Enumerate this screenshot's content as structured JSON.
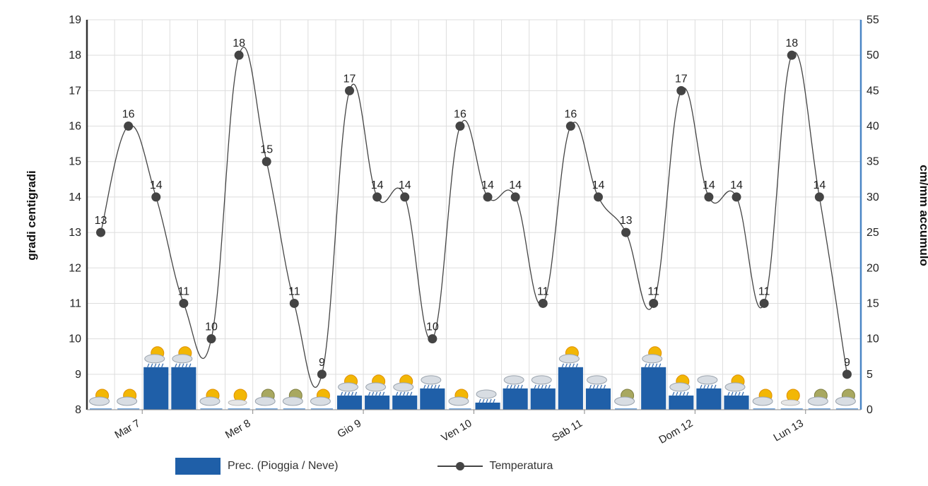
{
  "chart_data": {
    "type": "line",
    "title": "",
    "y_left_label": "gradi centigradi",
    "y_right_label": "cm/mm accumulo",
    "y_left_ticks": [
      "8",
      "9",
      "10",
      "11",
      "12",
      "13",
      "14",
      "15",
      "16",
      "17",
      "18",
      "19"
    ],
    "y_right_ticks": [
      "0",
      "5",
      "10",
      "15",
      "20",
      "25",
      "30",
      "35",
      "40",
      "45",
      "50",
      "55"
    ],
    "y_left_range": [
      8,
      19
    ],
    "y_right_range": [
      0,
      55
    ],
    "x_labels": [
      "Mar 7",
      "Mer 8",
      "Gio 9",
      "Ven 10",
      "Sab 11",
      "Dom 12",
      "Lun 13"
    ],
    "temperature_labels": [
      "13",
      "16",
      "14",
      "11",
      "10",
      "18",
      "15",
      "11",
      "9",
      "17",
      "14",
      "14",
      "10",
      "16",
      "14",
      "14",
      "11",
      "16",
      "14",
      "13",
      "11",
      "17",
      "14",
      "14",
      "11",
      "18",
      "14",
      "9"
    ],
    "series": [
      {
        "name": "Temperatura",
        "type": "line",
        "axis": "left",
        "color": "#444444",
        "values": [
          13,
          16,
          14,
          11,
          10,
          18,
          15,
          11,
          9,
          17,
          14,
          14,
          10,
          16,
          14,
          14,
          11,
          16,
          14,
          13,
          11,
          17,
          14,
          14,
          11,
          18,
          14,
          9
        ]
      },
      {
        "name": "Prec. (Pioggia / Neve)",
        "type": "bar",
        "axis": "right",
        "color": "#1f5fa8",
        "values": [
          0,
          0,
          6,
          6,
          0,
          0,
          0,
          0,
          0,
          2,
          2,
          2,
          3,
          0,
          1,
          3,
          3,
          6,
          3,
          0,
          6,
          2,
          3,
          2,
          0,
          0,
          0,
          0
        ]
      }
    ],
    "icons": [
      "sun-cloud-icon",
      "sun-cloud-icon",
      "rain-sun-icon",
      "rain-sun-icon",
      "sun-cloud-icon",
      "sun-icon",
      "moon-cloud-icon",
      "moon-cloud-icon",
      "sun-cloud-icon",
      "rain-sun-icon",
      "rain-sun-icon",
      "rain-sun-icon",
      "rain-icon",
      "sun-cloud-icon",
      "rain-icon",
      "rain-icon",
      "rain-icon",
      "rain-sun-icon",
      "rain-icon",
      "moon-cloud-icon",
      "rain-sun-icon",
      "rain-sun-icon",
      "rain-icon",
      "rain-sun-icon",
      "sun-cloud-icon",
      "sun-icon",
      "moon-cloud-icon",
      "moon-cloud-icon"
    ],
    "grid": true,
    "legend_position": "bottom"
  },
  "legend": {
    "bar_label": "Prec. (Pioggia / Neve)",
    "line_label": "Temperatura"
  },
  "colors": {
    "bar": "#1f5fa8",
    "line": "#444444",
    "right_axis": "#4a86c5",
    "left_axis": "#333333",
    "grid": "#dddddd"
  }
}
